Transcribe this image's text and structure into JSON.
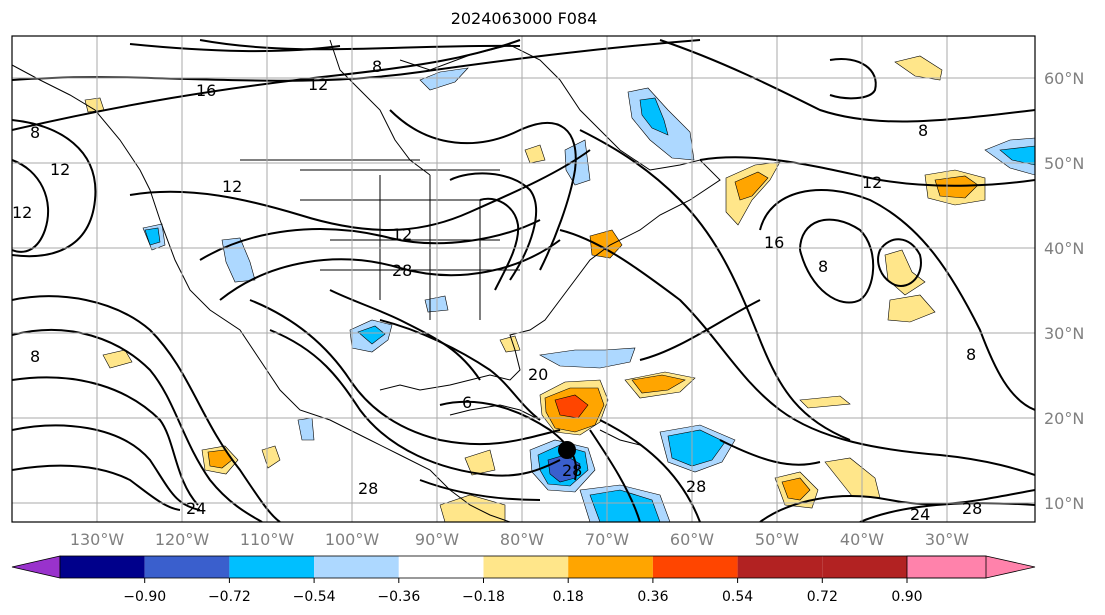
{
  "title": "2024063000 F084",
  "lon_labels": [
    "130°W",
    "120°W",
    "110°W",
    "100°W",
    "90°W",
    "80°W",
    "70°W",
    "60°W",
    "50°W",
    "40°W",
    "30°W"
  ],
  "lat_labels": [
    "60°N",
    "50°N",
    "40°N",
    "30°N",
    "20°N",
    "10°N"
  ],
  "contour_labels": [
    "8",
    "12",
    "16",
    "8",
    "8",
    "12",
    "12",
    "12",
    "12",
    "16",
    "8",
    "28",
    "12",
    "6",
    "20",
    "28",
    "8",
    "8",
    "24",
    "28",
    "28",
    "24",
    "28"
  ],
  "colorbar": {
    "ticks": [
      "−0.90",
      "−0.72",
      "−0.54",
      "−0.36",
      "−0.18",
      "0.18",
      "0.36",
      "0.54",
      "0.72",
      "0.90"
    ],
    "colors": [
      "#9932cc",
      "#00008b",
      "#3a5fcd",
      "#00bfff",
      "#add8ff",
      "#ffffff",
      "#ffe68a",
      "#ffa500",
      "#ff4500",
      "#b22222",
      "#ff82ab"
    ]
  }
}
